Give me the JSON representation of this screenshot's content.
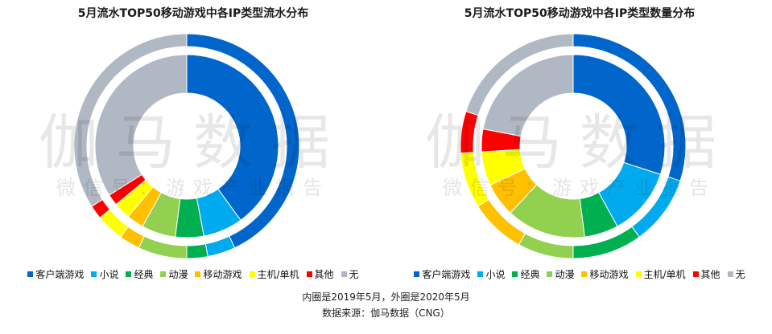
{
  "colors": {
    "客户端游戏": "#0066cc",
    "小说": "#00aaee",
    "经典": "#00b050",
    "动漫": "#92d050",
    "移动游戏": "#ffc000",
    "主机/单机": "#ffff00",
    "其他": "#ff0000",
    "无": "#b0b8c4"
  },
  "watermark": {
    "main": "伽马数据",
    "sub": "微信号：游戏产业报告"
  },
  "footer": {
    "note": "内圈是2019年5月，外圈是2020年5月",
    "source": "数据来源：伽马数据（CNG）"
  },
  "chart_data": [
    {
      "type": "pie",
      "variant": "double-donut",
      "title": "5月流水TOP50移动游戏中各IP类型流水分布",
      "categories": [
        "客户端游戏",
        "小说",
        "经典",
        "动漫",
        "移动游戏",
        "主机/单机",
        "其他",
        "无"
      ],
      "series": [
        {
          "ring": "inner",
          "values": [
            40,
            7,
            5,
            6,
            3,
            3,
            2,
            34
          ]
        },
        {
          "ring": "outer",
          "values": [
            43,
            4,
            3,
            7,
            3,
            4,
            2,
            34
          ]
        }
      ]
    },
    {
      "type": "pie",
      "variant": "double-donut",
      "title": "5月流水TOP50移动游戏中各IP类型数量分布",
      "categories": [
        "客户端游戏",
        "小说",
        "经典",
        "动漫",
        "移动游戏",
        "主机/单机",
        "其他",
        "无"
      ],
      "series": [
        {
          "ring": "inner",
          "values": [
            30,
            12,
            6,
            14,
            6,
            6,
            4,
            22
          ]
        },
        {
          "ring": "outer",
          "values": [
            30,
            10,
            10,
            8,
            8,
            8,
            6,
            20
          ]
        }
      ]
    }
  ]
}
